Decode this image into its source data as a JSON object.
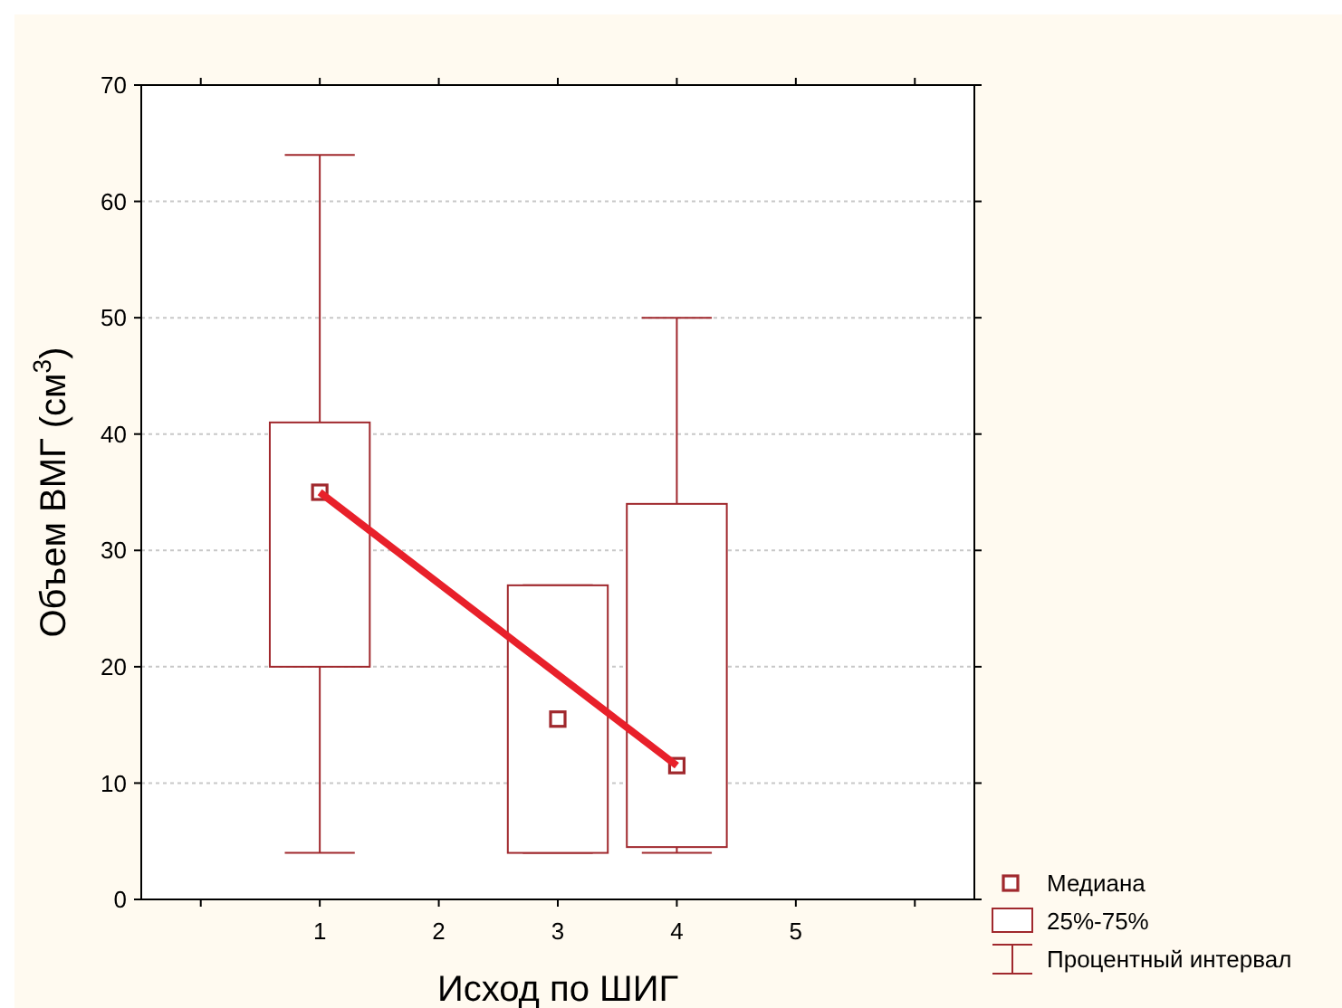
{
  "chart_data": {
    "type": "box",
    "xlabel": "Исход по ШИГ",
    "ylabel": "Объем ВМГ (см$^{3}$)",
    "xlim": [
      -0.5,
      6.5
    ],
    "xticks": [
      {
        "value": 0,
        "label": null
      },
      1,
      2,
      3,
      4,
      5,
      {
        "value": 6,
        "label": null
      }
    ],
    "ylim": [
      0,
      70
    ],
    "yticks": [
      0,
      10,
      20,
      30,
      40,
      50,
      60,
      70
    ],
    "grid": "y",
    "annotations": [
      "Медиана",
      "25%-75%",
      "Процентный интервал"
    ],
    "series": [
      {
        "color": "#a0282d",
        "marker": "square",
        "x": [
          1,
          3,
          4
        ],
        "boxes": [
          {
            "low": 4,
            "q1": 20,
            "median": 35,
            "q3": 41,
            "high": 64
          },
          {
            "low": 4,
            "q1": 4,
            "median": 15.5,
            "q3": 27,
            "high": 27
          },
          {
            "low": 4,
            "q1": 4.5,
            "median": 11.5,
            "q3": 34,
            "high": 50
          }
        ]
      },
      {
        "type": "line",
        "color": "#e8202a",
        "x": [
          1,
          4
        ],
        "values": [
          35,
          11.5
        ]
      }
    ]
  }
}
